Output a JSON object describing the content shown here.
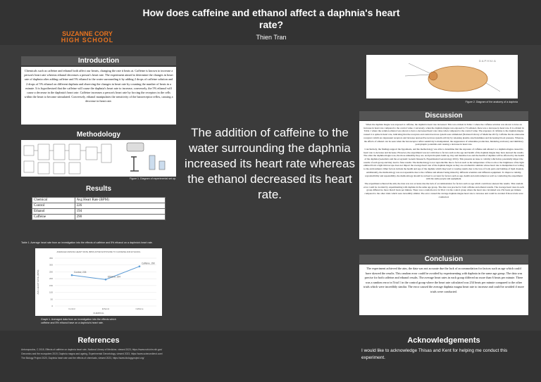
{
  "header": {
    "title": "How does caffeine and ethanol affect a daphnia's heart rate?",
    "author": "Thien Tran",
    "school_line1": "SUZANNE CORY",
    "school_line2": "HIGH SCHOOL"
  },
  "introduction": {
    "heading": "Introduction",
    "text": "Chemicals such as caffeine and ethanol both affect our hearts, changing the rate it beats at. Caffeine is known to increase a person's heart rate whereas ethanol decreases a person's heart rate. The experiment aimed to determine the changes in heart rate of daphnia after adding caffeine and 5% ethanol to the water surrounding it by adding 2 drops of caffeine solution and 2 drops of 5% ethanol on different daphnia and observing the changes in heart rate by counting the number of beats in a minute. It is hypothesised that the caffeine will cause the daphnia's heart rate to increase, conversely, the 5% ethanol will cause a decrease in the daphnia's heart rate. Caffeine increases a person's heart rate by forcing the receptors in the cells within the heart to become stimulated. Conversely, ethanol manipulates the sensitivity of the baroreceptor reflex, causing a decrease in heart rate."
  },
  "methodology": {
    "heading": "Methodology",
    "figure_caption": "Figure 1. Diagram of experimental set up."
  },
  "results": {
    "heading": "Results",
    "table": {
      "header": [
        "Chemical",
        "Avg Heart Rate (BPM)"
      ],
      "rows": [
        [
          "Control",
          226
        ],
        [
          "Ethanol",
          194
        ],
        [
          "Caffeine",
          290
        ]
      ]
    },
    "table_caption": "Table 1. Average heart rate from an investigation into the effects of caffeine and 5% ethanol on a daphnia's heart rate.",
    "graph_caption": "Graph 1. Averaged data from an investigation into the effects which caffeine and 5% ethanol have on a daphnia's heart rate."
  },
  "chart_data": {
    "type": "line",
    "title": "AVERAGE DAPHNIA HEART RATE (BPM) AFTER EXPOSURE TO CAFFEINE AND ETHANOL",
    "x_label": "CHEMICAL",
    "y_label": "AVG HEART RATE (BPM)",
    "categories": [
      "Control",
      "Ethanol",
      "Caffeine"
    ],
    "values": [
      226,
      194,
      290
    ],
    "value_labels": [
      "Control, 226",
      "Ethanol, 194",
      "Caffeine, 290"
    ],
    "color": "#5b9bd5",
    "ylim": [
      0,
      350
    ],
    "yticks": [
      0,
      50,
      100,
      150,
      200,
      250,
      300,
      350
    ],
    "grid": true
  },
  "key_finding": "The addition of caffeine to the water surrounding the daphnia increased its heart rate whereas the ethanol decreased its heart rate.",
  "figure2_caption": "Figure 2. Diagram of the anatomy of a daphnia",
  "discussion": {
    "heading": "Discussion",
    "paragraphs": [
      "When the daphnia magna was exposed to caffeine, the daphnia's heart rate increased. This was evident in Table 1 where the caffeine solution was shown to have an increase in heart rate compared to the control value. Conversely, when the daphnia magna was exposed to 5% ethanol, there was a decrease in heart rate. It is evident in Table 1 where the solution ethanol was shown to have a decreased heart rate value when compared to the control value. The exposure of caffeine to the daphnia magna caused it to spike in heart rate, indicating that the receptors and central nervous system were stimulated (National Library of Medicine 2015). Caffeine blocks adenosine receptors which are depressant receptors and increase neuroactive nervous system activity by releasing plasma catecholamines and increasing blood pressure. Whereas, the effects of ethanol can be seen when the baroreceptor reflex sensitivity is manipulated, the suppression of adrenaline production, hindering excitatory and inhibitory postsynaptic potentials and causing a decrease in heart rate.",
      "Conclusively, the findings support the hypothesis, and the methodology was able to determine that the exposure of caffeine and ethanol to a daphnia magna caused its heart rate to decrease and increase. However, the experiment was not valid due to factors such as the age and health of the daphnia magna may have skewed the results. The older the daphnia magna was, the more unhealthy they are. As lipid droplets build up, tiny and intestine loss and the health of daphnia will be affected by the health of the daphnia (Genomics and the ecosystem: Genetic Research, Experimental Gerontology 2019). This presents an issue to validity which may potentially impact the results of each group and may lead to false results. The methodology is not reproducible due to factors such as the temperature of the room or the brightness of the light emitted from a light microscope does not impact the average heart rate of the daphnia magna as they are ectothermic animals whose heart rate is manipulated according to the environment. Other factors include the health and age of the daphnia which may lead to varying results due to the loss of body parts and buildup of lipid droplets. Additionally, the methodology was not repeatable due to the caffeine and ethanol being mixed by different scientists and different equipment. To improve validity, reproducibility and repeatability, the methodology should be revised to account for factors such as age, health and environment as well as conducting the experiment with the same people and equipment.",
      "The experiment achieved the aim, the data was not accurate due the lack of accommodation for factors such as age which could have skewed the results. This random error could be avoided by experimenting with daphnia in the same age group. The data was precise for both caffeine and ethanol results. The average heart rates in each group differed no more than 6 beats per minute. There was a random error in Trial 1 in the control group where the heart rate calculated was 234 beats per minute compared to the other trials which were incredibly similar. The error caused the average daphnia magna heart rate to increase and could be avoided if more trials were conducted."
    ]
  },
  "conclusion": {
    "heading": "Conclusion",
    "text": "The experiment achieved the aim, the data was not accurate due the lack of accommodation for factors such as age which could have skewed the results. This random error could be avoided by experimenting with daphnia in the same age group. The data was precise for both caffeine and ethanol results. The average heart rates in each group differed no more than 6 beats per minute. There was a random error in Trial 1 in the control group where the heart rate calculated was 234 beats per minute compared to the other trials which were incredibly similar. The error caused the average daphnia magna heart rate to increase and could be avoided if more trials were conducted."
  },
  "references": {
    "heading": "References",
    "items": [
      "Antonopoulos, C 2015, Effects of caffeine on daphnia heart rate, National Library of Medicine, viewed 2023, https://www.ncbi.nlm.nih.gov/",
      "Genomics and the ecosystem 2019, Daphnia magna and ageing, Experimental Gerontology, viewed 2023, https://www.sciencedirect.com/",
      "The Biology Project 2020, Daphnia heart rate and the effects of chemicals, viewed 2023, https://www.biologyproject.org/"
    ]
  },
  "acknowledgements": {
    "heading": "Acknowledgements",
    "text": "I would like to acknowledge Thisas and Kent for helping me conduct this experiment."
  }
}
